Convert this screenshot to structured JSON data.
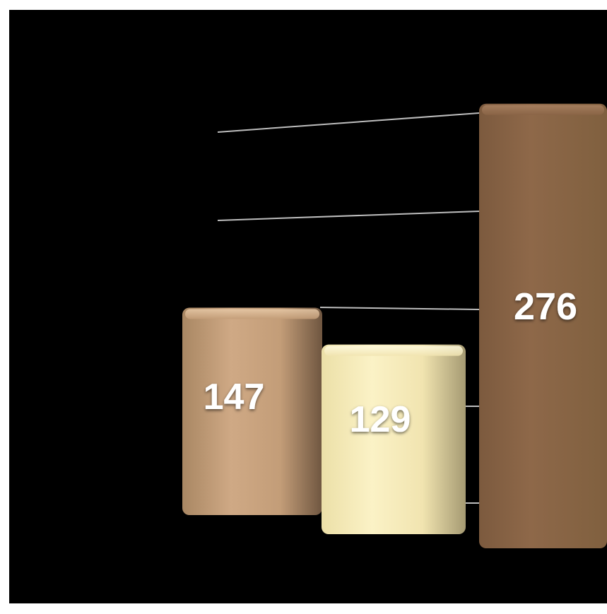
{
  "chart_data": {
    "type": "bar",
    "style": "3d",
    "categories": [
      "",
      "",
      ""
    ],
    "values": [
      147,
      129,
      276
    ],
    "labels": [
      "147",
      "129",
      "276"
    ],
    "colors": [
      "#c9a27c",
      "#f7ecbc",
      "#8a6446"
    ],
    "grid": true,
    "legend": "none",
    "background": "#000000"
  }
}
